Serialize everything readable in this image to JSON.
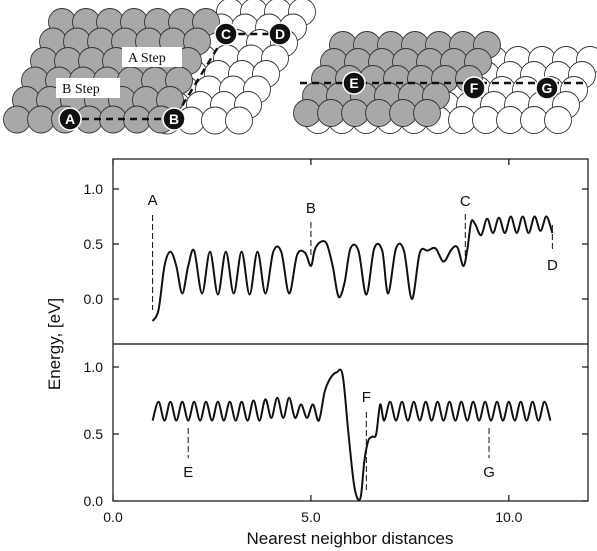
{
  "illustration": {
    "step_labels": {
      "a_step": "A Step",
      "b_step": "B Step"
    },
    "left_markers": [
      "A",
      "B",
      "C",
      "D"
    ],
    "right_markers": [
      "E",
      "F",
      "G"
    ],
    "colors": {
      "upper_atom": "#a8a8a8",
      "lower_atom": "#ffffff",
      "marker": "#111111"
    }
  },
  "chart_data": [
    {
      "type": "line",
      "title": "",
      "xlabel": "Nearest neighbor distances",
      "ylabel": "Energy, [eV]",
      "xlim": [
        0,
        12
      ],
      "ylim": [
        -0.3,
        1.0
      ],
      "yticks": [
        "0.0",
        "0.5",
        "1.0"
      ],
      "series": [
        {
          "x": [
            1.0,
            1.15,
            1.3,
            1.45,
            1.6,
            1.75,
            1.9,
            2.05,
            2.25,
            2.45,
            2.65,
            2.85,
            3.05,
            3.25,
            3.45,
            3.65,
            3.85,
            4.05,
            4.25,
            4.45,
            4.65,
            4.85,
            5.0,
            5.1,
            5.25,
            5.4,
            5.55,
            5.7,
            5.85,
            6.0,
            6.2,
            6.4,
            6.6,
            6.8,
            6.95,
            7.15,
            7.35,
            7.55,
            7.75,
            7.95,
            8.15,
            8.35,
            8.55,
            8.7,
            8.85,
            8.95,
            9.05,
            9.15,
            9.3,
            9.45,
            9.6,
            9.75,
            9.9,
            10.05,
            10.2,
            10.35,
            10.5,
            10.65,
            10.8,
            10.95,
            11.1
          ],
          "y": [
            -0.2,
            -0.1,
            0.3,
            0.43,
            0.3,
            0.05,
            0.3,
            0.44,
            0.05,
            0.43,
            0.04,
            0.43,
            0.05,
            0.43,
            0.04,
            0.43,
            0.05,
            0.43,
            0.43,
            0.05,
            0.4,
            0.42,
            0.3,
            0.45,
            0.52,
            0.5,
            0.3,
            0.02,
            0.15,
            0.46,
            0.44,
            0.04,
            0.46,
            0.44,
            0.05,
            0.46,
            0.44,
            0.0,
            0.42,
            0.44,
            0.46,
            0.34,
            0.45,
            0.47,
            0.3,
            0.45,
            0.7,
            0.68,
            0.58,
            0.73,
            0.6,
            0.74,
            0.6,
            0.75,
            0.6,
            0.75,
            0.6,
            0.75,
            0.62,
            0.75,
            0.6
          ]
        }
      ],
      "annotations": [
        {
          "label": "A",
          "x": 1.0
        },
        {
          "label": "B",
          "x": 5.0
        },
        {
          "label": "C",
          "x": 8.9
        },
        {
          "label": "D",
          "x": 11.1
        }
      ]
    },
    {
      "type": "line",
      "title": "",
      "xlabel": "Nearest neighbor distances",
      "ylabel": "Energy, [eV]",
      "xlim": [
        0,
        12
      ],
      "ylim": [
        0.0,
        1.15
      ],
      "xticks": [
        "0.0",
        "5.0",
        "10.0"
      ],
      "yticks": [
        "0.0",
        "0.5",
        "1.0"
      ],
      "series": [
        {
          "x": [
            1.0,
            1.15,
            1.3,
            1.45,
            1.6,
            1.75,
            1.9,
            2.05,
            2.2,
            2.35,
            2.5,
            2.65,
            2.8,
            2.95,
            3.1,
            3.25,
            3.4,
            3.55,
            3.7,
            3.85,
            4.0,
            4.15,
            4.3,
            4.45,
            4.6,
            4.75,
            4.9,
            5.05,
            5.2,
            5.35,
            5.5,
            5.65,
            5.8,
            5.95,
            6.1,
            6.25,
            6.35,
            6.45,
            6.55,
            6.65,
            6.75,
            6.85,
            7.0,
            7.15,
            7.3,
            7.45,
            7.6,
            7.75,
            7.9,
            8.05,
            8.2,
            8.35,
            8.5,
            8.65,
            8.8,
            8.95,
            9.1,
            9.25,
            9.4,
            9.55,
            9.7,
            9.85,
            10.0,
            10.15,
            10.3,
            10.45,
            10.6,
            10.75,
            10.9,
            11.05
          ],
          "y": [
            0.6,
            0.74,
            0.6,
            0.74,
            0.6,
            0.74,
            0.6,
            0.74,
            0.6,
            0.74,
            0.6,
            0.74,
            0.6,
            0.74,
            0.6,
            0.74,
            0.6,
            0.75,
            0.6,
            0.76,
            0.62,
            0.77,
            0.62,
            0.77,
            0.62,
            0.72,
            0.62,
            0.72,
            0.6,
            0.82,
            0.92,
            0.96,
            0.94,
            0.5,
            0.1,
            0.02,
            0.3,
            0.45,
            0.48,
            0.5,
            0.72,
            0.6,
            0.74,
            0.6,
            0.74,
            0.6,
            0.74,
            0.6,
            0.74,
            0.6,
            0.74,
            0.6,
            0.74,
            0.6,
            0.74,
            0.6,
            0.74,
            0.6,
            0.74,
            0.6,
            0.74,
            0.6,
            0.74,
            0.6,
            0.74,
            0.6,
            0.74,
            0.6,
            0.74,
            0.6
          ]
        }
      ],
      "annotations": [
        {
          "label": "E",
          "x": 1.9
        },
        {
          "label": "F",
          "x": 6.4
        },
        {
          "label": "G",
          "x": 9.5
        }
      ]
    }
  ]
}
